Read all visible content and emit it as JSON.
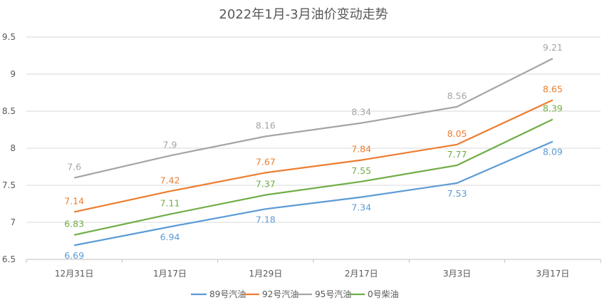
{
  "chart_data": {
    "type": "line",
    "title": "2022年1月-3月油价变动走势",
    "categories": [
      "12月31日",
      "1月17日",
      "1月29日",
      "2月17日",
      "3月3日",
      "3月17日"
    ],
    "ylim": [
      6.5,
      9.5
    ],
    "yticks": [
      "6.5",
      "7",
      "7.5",
      "8",
      "8.5",
      "9",
      "9.5"
    ],
    "grid": true,
    "legend_position": "bottom",
    "series": [
      {
        "name": "89号汽油",
        "color": "#5b9bd5",
        "values": [
          6.69,
          6.94,
          7.18,
          7.34,
          7.53,
          8.09
        ],
        "labels": [
          "6.69",
          "6.94",
          "7.18",
          "7.34",
          "7.53",
          "8.09"
        ]
      },
      {
        "name": "92号汽油",
        "color": "#ed7d31",
        "values": [
          7.14,
          7.42,
          7.67,
          7.84,
          8.05,
          8.65
        ],
        "labels": [
          "7.14",
          "7.42",
          "7.67",
          "7.84",
          "8.05",
          "8.65"
        ]
      },
      {
        "name": "95号汽油",
        "color": "#a5a5a5",
        "values": [
          7.6,
          7.9,
          8.16,
          8.34,
          8.56,
          9.21
        ],
        "labels": [
          "7.6",
          "7.9",
          "8.16",
          "8.34",
          "8.56",
          "9.21"
        ]
      },
      {
        "name": "0号柴油",
        "color": "#70ad47",
        "values": [
          6.83,
          7.11,
          7.37,
          7.55,
          7.77,
          8.39
        ],
        "labels": [
          "6.83",
          "7.11",
          "7.37",
          "7.55",
          "7.77",
          "8.39"
        ]
      }
    ]
  }
}
